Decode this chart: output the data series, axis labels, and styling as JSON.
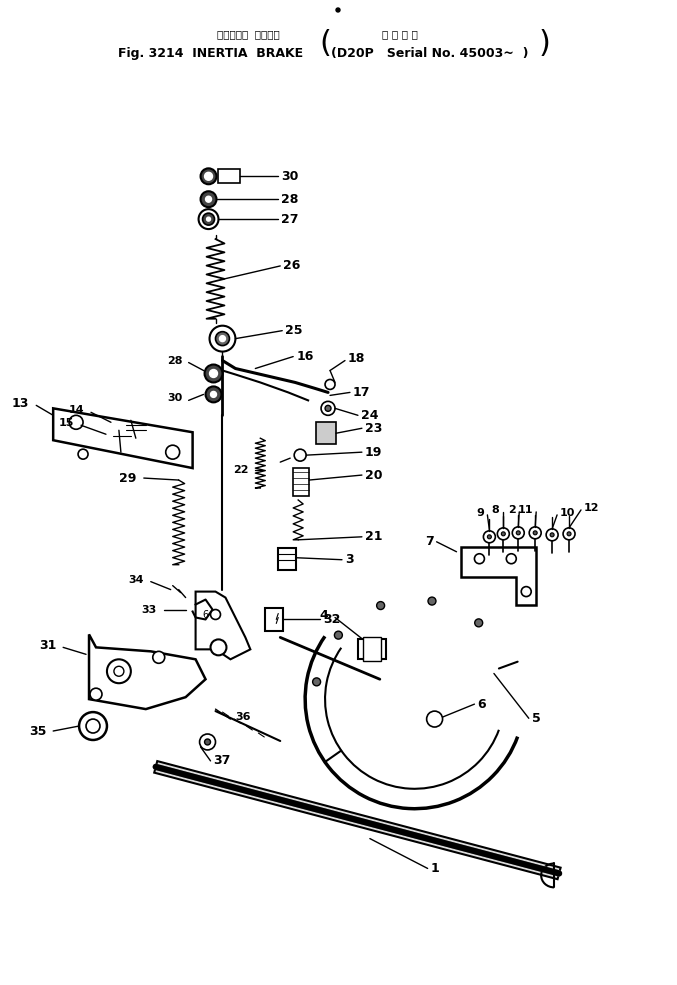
{
  "title_jp": "イナーシャ  ブレーキ",
  "title_jp2": "適 用 号 機",
  "title_en": "Fig. 3214  INERTIA  BRAKE",
  "title_en2": "(D20P   Serial No. 45003~  )",
  "bg_color": "#ffffff",
  "line_color": "#000000",
  "fig_width": 6.77,
  "fig_height": 9.85,
  "dpi": 100
}
